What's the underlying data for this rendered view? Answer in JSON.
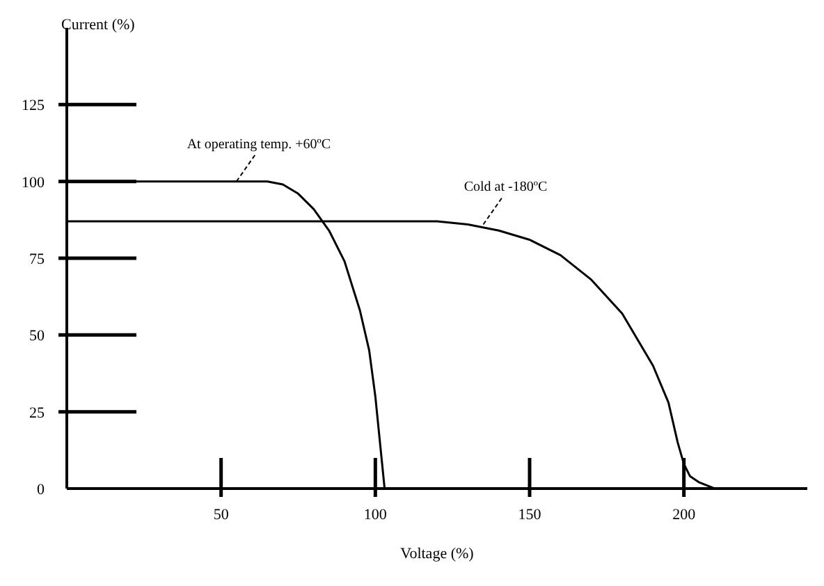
{
  "chart_data": {
    "type": "line",
    "xlabel": "Voltage (%)",
    "ylabel": "Current (%)",
    "xlim": [
      0,
      240
    ],
    "ylim": [
      0,
      150
    ],
    "xticks": [
      50,
      100,
      150,
      200
    ],
    "yticks": [
      0,
      25,
      50,
      75,
      100,
      125
    ],
    "grid": false,
    "legend": false,
    "marker": "none",
    "line_style": "solid",
    "series": [
      {
        "color": "#000000",
        "x": [
          0,
          65,
          70,
          75,
          80,
          85,
          90,
          95,
          98,
          100,
          102,
          103
        ],
        "values": [
          100,
          100,
          99,
          96,
          91,
          84,
          74,
          58,
          45,
          30,
          10,
          0
        ]
      },
      {
        "color": "#000000",
        "x": [
          0,
          120,
          130,
          140,
          150,
          160,
          170,
          180,
          190,
          195,
          198,
          200,
          202,
          205,
          210
        ],
        "values": [
          87,
          87,
          86,
          84,
          81,
          76,
          68,
          57,
          40,
          28,
          15,
          8,
          4,
          2,
          0
        ]
      }
    ],
    "annotations": [
      {
        "text": "At operating temp. +60ºC",
        "x": 55,
        "y": 100
      },
      {
        "text": "Cold at -180ºC",
        "x": 135,
        "y": 86
      }
    ]
  }
}
